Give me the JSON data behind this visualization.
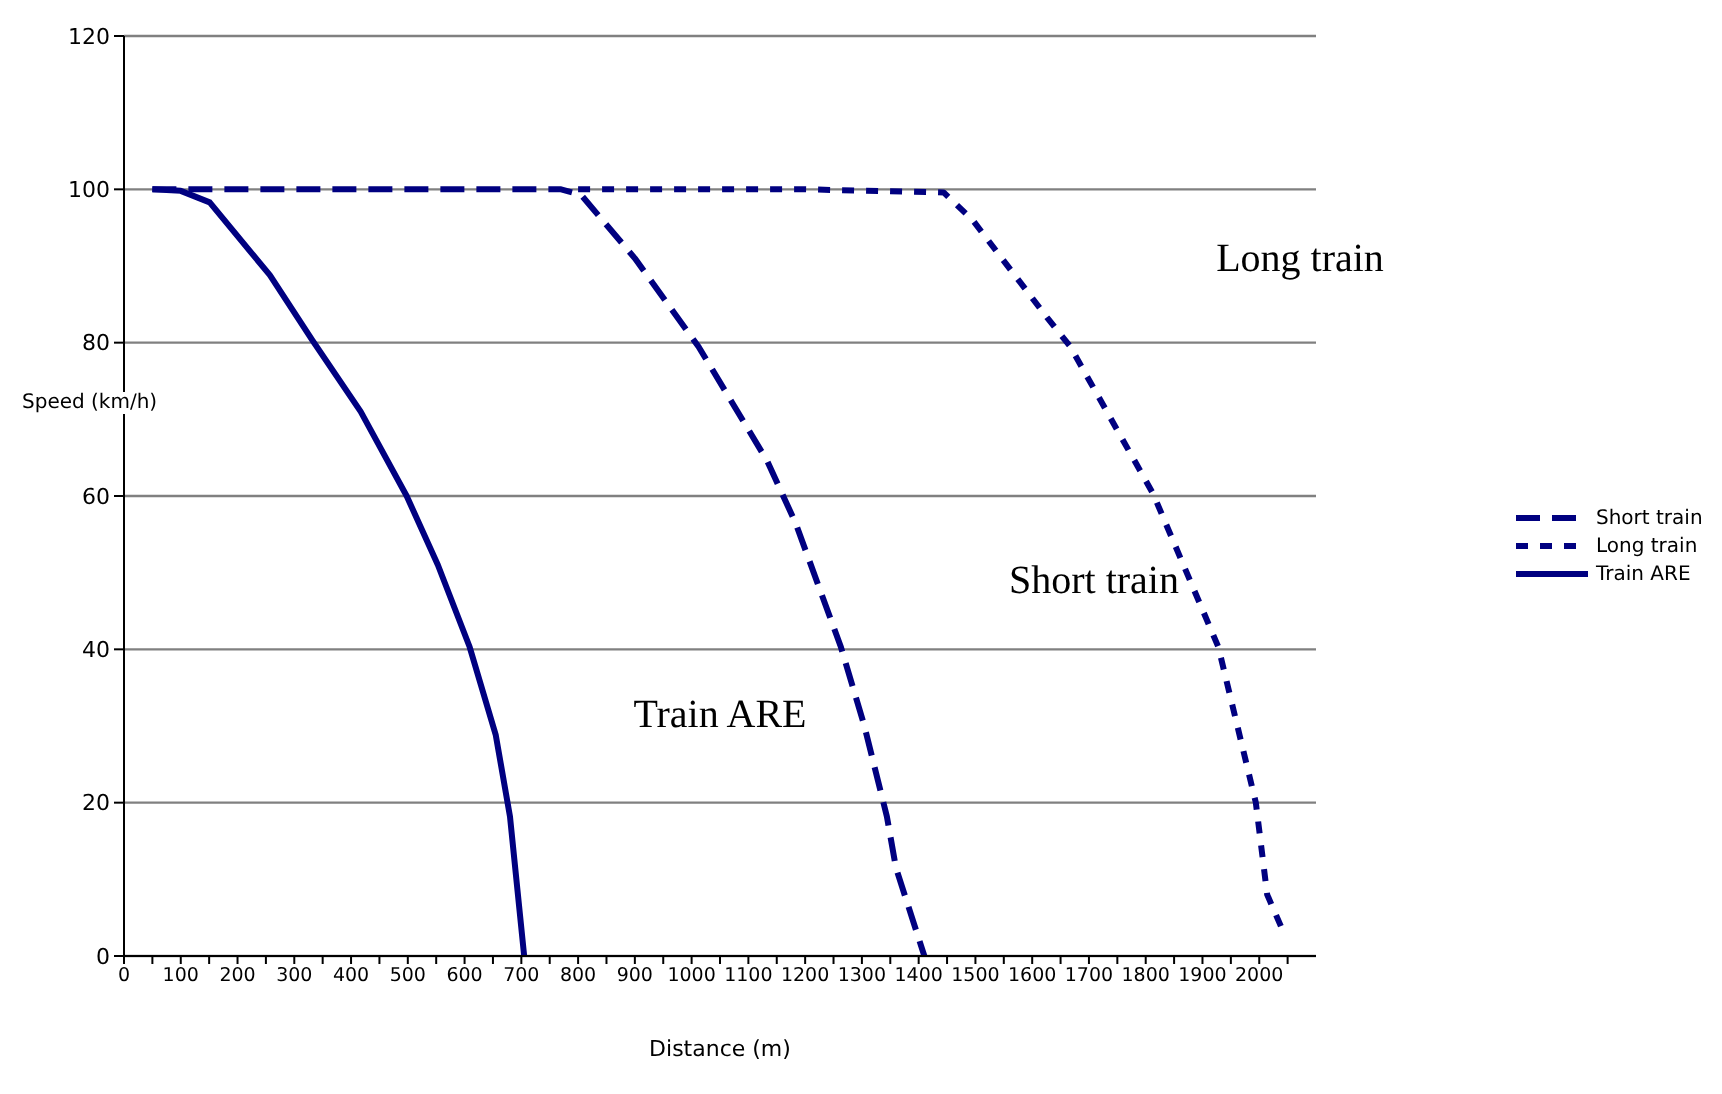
{
  "chart_data": {
    "type": "line",
    "xlabel": "Distance (m)",
    "ylabel": "Speed (km/h)",
    "xlim": [
      0,
      2100
    ],
    "xticks": [
      0,
      {
        "value": 50,
        "label": null
      },
      100,
      {
        "value": 150,
        "label": null
      },
      200,
      {
        "value": 250,
        "label": null
      },
      300,
      {
        "value": 350,
        "label": null
      },
      400,
      {
        "value": 450,
        "label": null
      },
      500,
      {
        "value": 550,
        "label": null
      },
      600,
      {
        "value": 650,
        "label": null
      },
      700,
      {
        "value": 750,
        "label": null
      },
      800,
      {
        "value": 850,
        "label": null
      },
      900,
      {
        "value": 950,
        "label": null
      },
      1000,
      {
        "value": 1050,
        "label": null
      },
      1100,
      {
        "value": 1150,
        "label": null
      },
      1200,
      {
        "value": 1250,
        "label": null
      },
      1300,
      {
        "value": 1350,
        "label": null
      },
      1400,
      {
        "value": 1450,
        "label": null
      },
      1500,
      {
        "value": 1550,
        "label": null
      },
      1600,
      {
        "value": 1650,
        "label": null
      },
      1700,
      {
        "value": 1750,
        "label": null
      },
      1800,
      {
        "value": 1850,
        "label": null
      },
      1900,
      {
        "value": 1950,
        "label": null
      },
      2000,
      {
        "value": 2050,
        "label": null
      }
    ],
    "ylim": [
      0,
      120
    ],
    "yticks": [
      0,
      20,
      40,
      60,
      80,
      100,
      120
    ],
    "grid": "y",
    "legend": "right",
    "marker": "none",
    "series": [
      {
        "name": "Short train",
        "color": "#000080",
        "line_style": "dashed",
        "x": [
          50,
          200,
          400,
          600,
          770,
          805,
          900,
          1012,
          1133,
          1183,
          1263,
          1304,
          1344,
          1360,
          1410
        ],
        "values": [
          100,
          100,
          100,
          100,
          100,
          99.3,
          91,
          79.5,
          64.6,
          56.5,
          40.3,
          30.1,
          18.2,
          11.5,
          0
        ]
      },
      {
        "name": "Long train",
        "color": "#000080",
        "line_style": "dotted",
        "x": [
          800,
          1000,
          1200,
          1444,
          1495,
          1626,
          1667,
          1813,
          1928,
          1994,
          2014,
          2044
        ],
        "values": [
          100,
          100,
          100,
          99.6,
          96,
          83.3,
          79.5,
          60.3,
          40.3,
          20,
          8,
          2.9
        ]
      },
      {
        "name": "Train ARE",
        "color": "#000080",
        "line_style": "solid",
        "x": [
          50,
          100,
          151,
          257,
          332,
          417,
          498,
          553,
          609,
          655,
          680,
          705
        ],
        "values": [
          100,
          99.8,
          98.3,
          88.8,
          80.3,
          71,
          60,
          51,
          40.3,
          28.8,
          18.2,
          0
        ]
      }
    ],
    "annotations": [
      "Train ARE",
      "Short train",
      "Long train"
    ]
  }
}
